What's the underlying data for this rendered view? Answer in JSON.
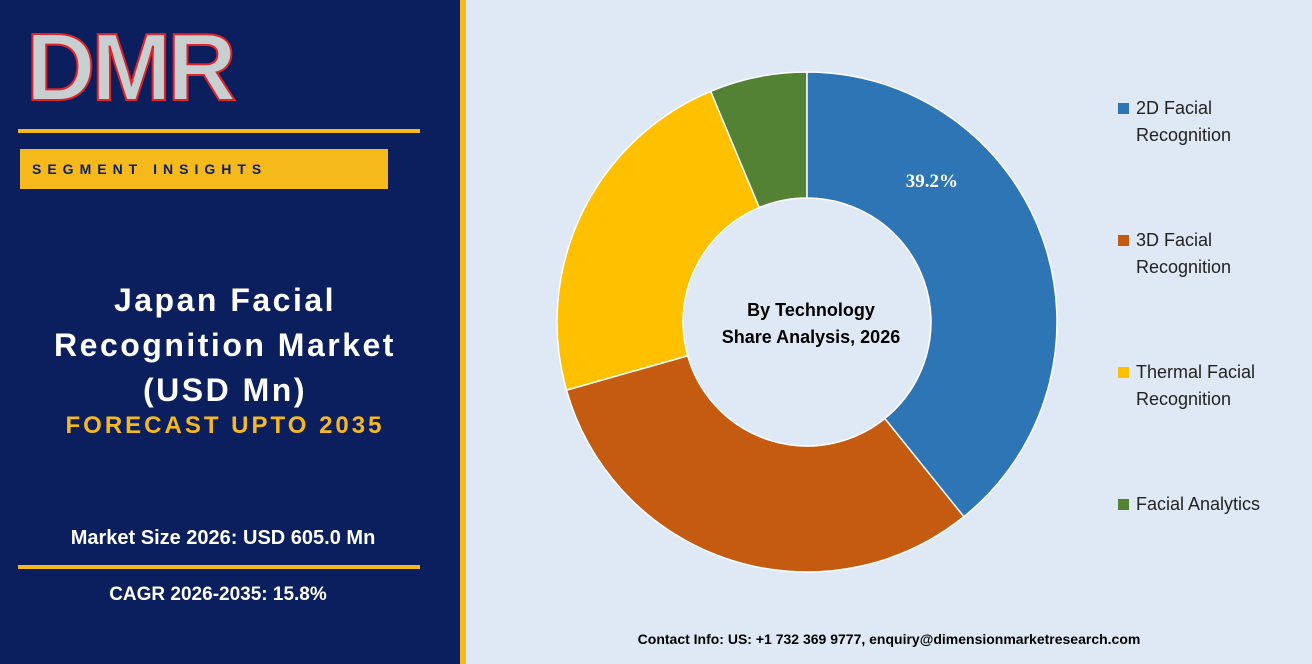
{
  "header": {
    "logo": "DMR",
    "badge": "SEGMENT INSIGHTS",
    "title": "Japan Facial Recognition Market (USD Mn)",
    "forecast": "FORECAST UPTO 2035",
    "market_size": "Market Size 2026: USD 605.0 Mn",
    "cagr": "CAGR 2026-2035: 15.8%"
  },
  "chart_data": {
    "type": "donut",
    "title": "By Technology",
    "subtitle": "Share Analysis, 2026",
    "categories": [
      "2D Facial Recognition",
      "3D Facial Recognition",
      "Thermal Facial Recognition",
      "Facial Analytics"
    ],
    "values": [
      39.2,
      31.4,
      23.1,
      6.3
    ],
    "value_labels": [
      "39.2%",
      null,
      null,
      null
    ],
    "colors": [
      "#2e75b6",
      "#c55a11",
      "#ffc000",
      "#548235"
    ]
  },
  "footer": {
    "contact": "Contact Info: US: +1 732 369 9777, enquiry@dimensionmarketresearch.com"
  }
}
